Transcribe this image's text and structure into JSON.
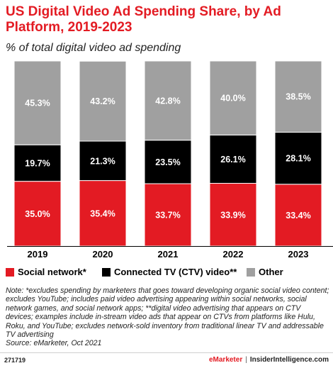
{
  "chart_data": {
    "type": "bar",
    "stacked": true,
    "title": "US Digital Video Ad Spending Share, by Ad Platform, 2019-2023",
    "subtitle": "% of total digital video ad spending",
    "categories": [
      "2019",
      "2020",
      "2021",
      "2022",
      "2023"
    ],
    "series": [
      {
        "name": "Social network*",
        "color": "#e31b23",
        "values": [
          35.0,
          35.4,
          33.7,
          33.9,
          33.4
        ],
        "labels": [
          "35.0%",
          "35.4%",
          "33.7%",
          "33.9%",
          "33.4%"
        ],
        "label_color": "#ffffff"
      },
      {
        "name": "Connected TV (CTV) video**",
        "color": "#000000",
        "values": [
          19.7,
          21.3,
          23.5,
          26.1,
          28.1
        ],
        "labels": [
          "19.7%",
          "21.3%",
          "23.5%",
          "26.1%",
          "28.1%"
        ],
        "label_color": "#ffffff"
      },
      {
        "name": "Other",
        "color": "#a0a0a0",
        "values": [
          45.3,
          43.2,
          42.8,
          40.0,
          38.5
        ],
        "labels": [
          "45.3%",
          "43.2%",
          "42.8%",
          "40.0%",
          "38.5%"
        ],
        "label_color": "#ffffff"
      }
    ],
    "ylim": [
      0,
      100
    ],
    "legend_position": "bottom",
    "grid": false
  },
  "note": "Note: *excludes spending by marketers that goes toward developing organic social video content; excludes YouTube; includes paid video advertising appearing within social networks, social network games, and social network apps; **digital video advertising that appears on CTV devices; examples include in-stream video ads that appear on CTVs from platforms like Hulu, Roku, and YouTube; excludes network-sold inventory from traditional linear TV and addressable TV advertising",
  "source": "Source: eMarketer, Oct 2021",
  "footer": {
    "chart_id": "271719",
    "brand_emarketer": "eMarketer",
    "separator": "|",
    "brand_insider": "InsiderIntelligence.com"
  }
}
